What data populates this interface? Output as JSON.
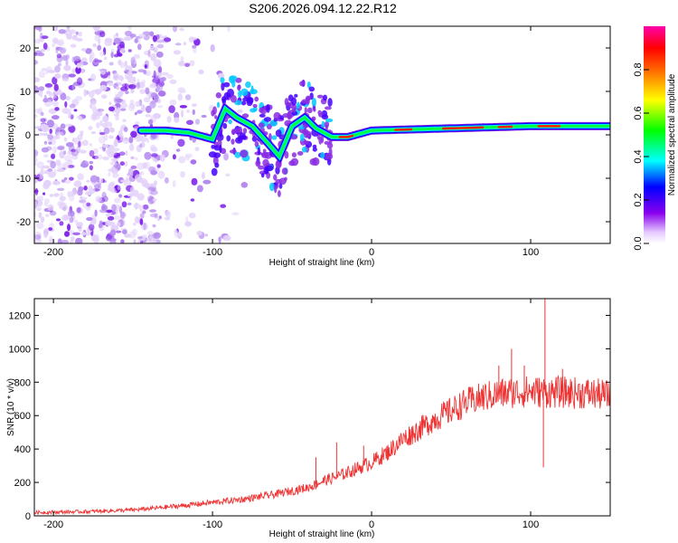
{
  "title": "S206.2026.094.12.22.R12",
  "chart_data": [
    {
      "type": "heatmap",
      "xlabel": "Height of straight line (km)",
      "ylabel": "Frequency (Hz)",
      "xlim": [
        -212,
        150
      ],
      "ylim": [
        -25,
        25
      ],
      "xticks": [
        -200,
        -100,
        0,
        100
      ],
      "xtick_labels": [
        "-200",
        "-100",
        "0",
        "100"
      ],
      "yticks": [
        20,
        10,
        0,
        -10,
        -20
      ],
      "ytick_labels": [
        "20",
        "10",
        "0",
        "-10",
        "-20"
      ],
      "ridge": [
        {
          "x": -145,
          "f": 1.0
        },
        {
          "x": -130,
          "f": 1.0
        },
        {
          "x": -115,
          "f": 0.5
        },
        {
          "x": -100,
          "f": -1.0
        },
        {
          "x": -92,
          "f": 6.0
        },
        {
          "x": -85,
          "f": 4.0
        },
        {
          "x": -75,
          "f": 2.0
        },
        {
          "x": -65,
          "f": -2.0
        },
        {
          "x": -58,
          "f": -5.0
        },
        {
          "x": -50,
          "f": 2.0
        },
        {
          "x": -42,
          "f": 4.0
        },
        {
          "x": -35,
          "f": 1.5
        },
        {
          "x": -25,
          "f": -0.5
        },
        {
          "x": -15,
          "f": -0.5
        },
        {
          "x": 0,
          "f": 1.0
        },
        {
          "x": 50,
          "f": 1.5
        },
        {
          "x": 100,
          "f": 2.0
        },
        {
          "x": 150,
          "f": 2.0
        }
      ],
      "colorbar": {
        "label": "Normalized spectral amplitude",
        "ticks": [
          0.0,
          0.2,
          0.4,
          0.6,
          0.8
        ],
        "tick_labels": [
          "0.0",
          "0.2",
          "0.4",
          "0.6",
          "0.8"
        ],
        "range": [
          0,
          1
        ],
        "colormap": "rainbow (white-purple-blue-cyan-green-yellow-red-magenta)"
      }
    },
    {
      "type": "line",
      "xlabel": "Height of straight line (km)",
      "ylabel": "SNR (10 * v/v)",
      "xlim": [
        -212,
        150
      ],
      "ylim": [
        0,
        1300
      ],
      "xticks": [
        -200,
        -100,
        0,
        100
      ],
      "xtick_labels": [
        "-200",
        "-100",
        "0",
        "100"
      ],
      "yticks": [
        0,
        200,
        400,
        600,
        800,
        1000,
        1200
      ],
      "ytick_labels": [
        "0",
        "200",
        "400",
        "600",
        "800",
        "1000",
        "1200"
      ],
      "color": "#ee3333",
      "series": [
        {
          "x": [
            -212,
            -180,
            -150,
            -120,
            -100,
            -80,
            -60,
            -40,
            -30,
            -20,
            -10,
            0,
            10,
            20,
            30,
            40,
            50,
            60,
            70,
            80,
            90,
            100,
            110,
            120,
            130,
            140,
            150
          ],
          "y": [
            20,
            25,
            35,
            60,
            80,
            100,
            130,
            170,
            210,
            240,
            280,
            320,
            380,
            460,
            520,
            580,
            630,
            680,
            710,
            730,
            740,
            745,
            740,
            740,
            735,
            730,
            720
          ]
        }
      ],
      "spikes": [
        {
          "x": -35,
          "y": 350
        },
        {
          "x": -22,
          "y": 440
        },
        {
          "x": -5,
          "y": 420
        },
        {
          "x": 80,
          "y": 900
        },
        {
          "x": 88,
          "y": 1000
        },
        {
          "x": 96,
          "y": 900
        },
        {
          "x": 108,
          "y": 290
        },
        {
          "x": 109,
          "y": 1300
        },
        {
          "x": 120,
          "y": 880
        }
      ]
    }
  ]
}
